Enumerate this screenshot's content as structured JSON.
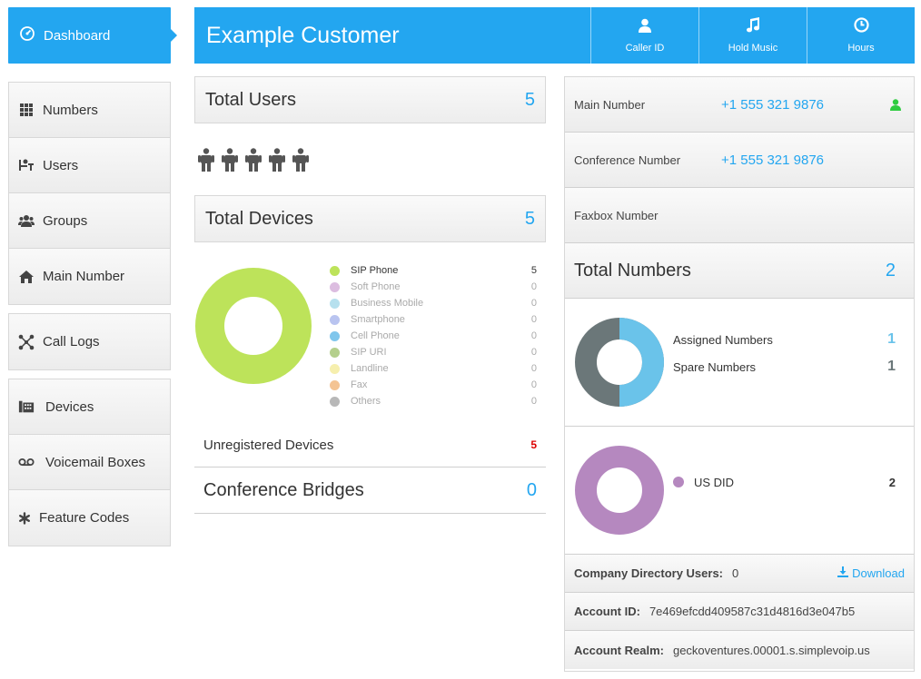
{
  "sidebar": {
    "dashboard_label": "Dashboard",
    "group1": [
      {
        "label": "Numbers",
        "icon": "grid-icon"
      },
      {
        "label": "Users",
        "icon": "user-desk-icon"
      },
      {
        "label": "Groups",
        "icon": "users-icon"
      },
      {
        "label": "Main Number",
        "icon": "home-icon"
      }
    ],
    "group2": [
      {
        "label": "Call Logs",
        "icon": "network-icon"
      }
    ],
    "group3": [
      {
        "label": "Devices",
        "icon": "fax-device-icon"
      },
      {
        "label": "Voicemail Boxes",
        "icon": "voicemail-icon"
      },
      {
        "label": "Feature Codes",
        "icon": "asterisk-icon"
      }
    ]
  },
  "header": {
    "title": "Example Customer",
    "buttons": [
      {
        "label": "Caller ID",
        "icon": "user-icon"
      },
      {
        "label": "Hold Music",
        "icon": "music-icon"
      },
      {
        "label": "Hours",
        "icon": "clock-icon"
      }
    ]
  },
  "users": {
    "label": "Total Users",
    "count": "5",
    "icon_count": 5
  },
  "devices": {
    "label": "Total Devices",
    "count": "5",
    "legend": [
      {
        "name": "SIP Phone",
        "value": "5",
        "color": "#bde35a"
      },
      {
        "name": "Soft Phone",
        "value": "0",
        "color": "#dcbde0"
      },
      {
        "name": "Business Mobile",
        "value": "0",
        "color": "#b6e0ee"
      },
      {
        "name": "Smartphone",
        "value": "0",
        "color": "#b9c4f0"
      },
      {
        "name": "Cell Phone",
        "value": "0",
        "color": "#80c6ec"
      },
      {
        "name": "SIP URI",
        "value": "0",
        "color": "#b4cf8c"
      },
      {
        "name": "Landline",
        "value": "0",
        "color": "#f6efae"
      },
      {
        "name": "Fax",
        "value": "0",
        "color": "#f4c494"
      },
      {
        "name": "Others",
        "value": "0",
        "color": "#b8b8b8"
      }
    ],
    "unregistered_label": "Unregistered Devices",
    "unregistered_count": "5"
  },
  "conference": {
    "label": "Conference Bridges",
    "count": "0"
  },
  "right": {
    "main_number_label": "Main Number",
    "main_number": "+1 555 321 9876",
    "conference_number_label": "Conference Number",
    "conference_number": "+1 555 321 9876",
    "faxbox_label": "Faxbox Number",
    "total_numbers_label": "Total Numbers",
    "total_numbers": "2",
    "assigned_label": "Assigned Numbers",
    "assigned_value": "1",
    "assigned_color": "#6ac3ea",
    "spare_label": "Spare Numbers",
    "spare_value": "1",
    "spare_color": "#6b7779",
    "us_did_label": "US DID",
    "us_did_value": "2",
    "us_did_color": "#b588bf",
    "directory_label": "Company Directory Users:",
    "directory_value": "0",
    "download_label": "Download",
    "account_id_label": "Account ID:",
    "account_id": "7e469efcdd409587c31d4816d3e047b5",
    "realm_label": "Account Realm:",
    "realm": "geckoventures.00001.s.simplevoip.us"
  },
  "colors": {
    "accent": "#23a6f0",
    "device_donut": "#bde35a",
    "error": "#dd0000"
  }
}
